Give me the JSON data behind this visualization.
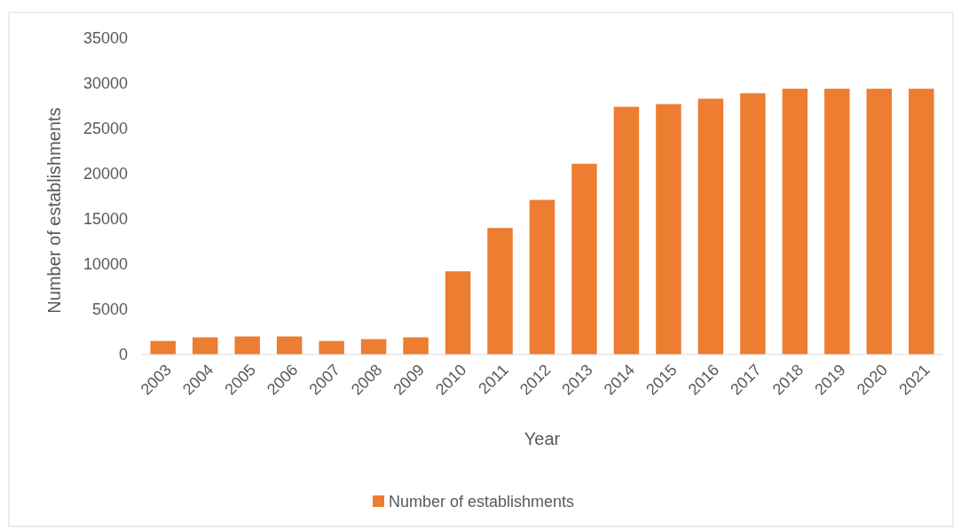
{
  "chart_data": {
    "type": "bar",
    "xlabel": "Year",
    "ylabel": "Number of establishments",
    "categories": [
      "2003",
      "2004",
      "2005",
      "2006",
      "2007",
      "2008",
      "2009",
      "2010",
      "2011",
      "2012",
      "2013",
      "2014",
      "2015",
      "2016",
      "2017",
      "2018",
      "2019",
      "2020",
      "2021"
    ],
    "series": [
      {
        "name": "Number of establishments",
        "color": "#ed7d31",
        "values": [
          1500,
          1900,
          2000,
          2000,
          1500,
          1700,
          1900,
          9200,
          14000,
          17100,
          21100,
          27400,
          27700,
          28300,
          28900,
          29400,
          29400,
          29400,
          29400
        ]
      }
    ],
    "ylim": [
      0,
      35000
    ],
    "yticks": [
      0,
      5000,
      10000,
      15000,
      20000,
      25000,
      30000,
      35000
    ],
    "grid": false,
    "legend": "bottom"
  }
}
